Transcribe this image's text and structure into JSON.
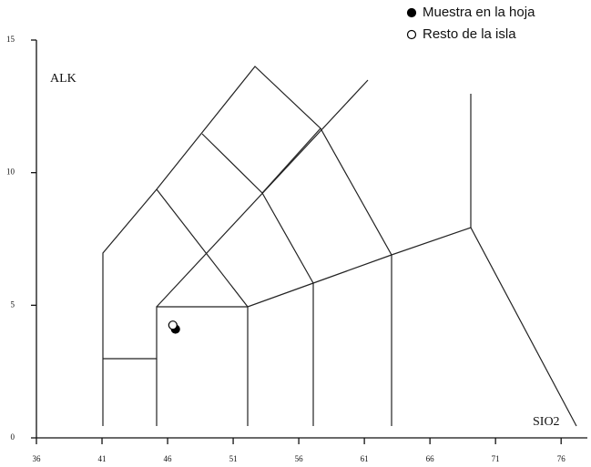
{
  "chart_data": {
    "type": "scatter",
    "xlabel": "SIO2",
    "ylabel": "ALK",
    "xlim": [
      36,
      78
    ],
    "ylim": [
      0,
      15
    ],
    "xticks": [
      36,
      41,
      46,
      51,
      56,
      61,
      66,
      71,
      76
    ],
    "yticks": [
      0,
      5,
      10,
      15
    ],
    "legend": "top-right",
    "series": [
      {
        "name": "Muestra en la hoja",
        "color": "#000000",
        "fill": "#000000",
        "x": [
          46.6
        ],
        "values": [
          4.1
        ]
      },
      {
        "name": "Resto de la isla",
        "color": "#000000",
        "fill": "#ffffff",
        "x": [
          46.4
        ],
        "values": [
          4.25
        ]
      }
    ]
  }
}
